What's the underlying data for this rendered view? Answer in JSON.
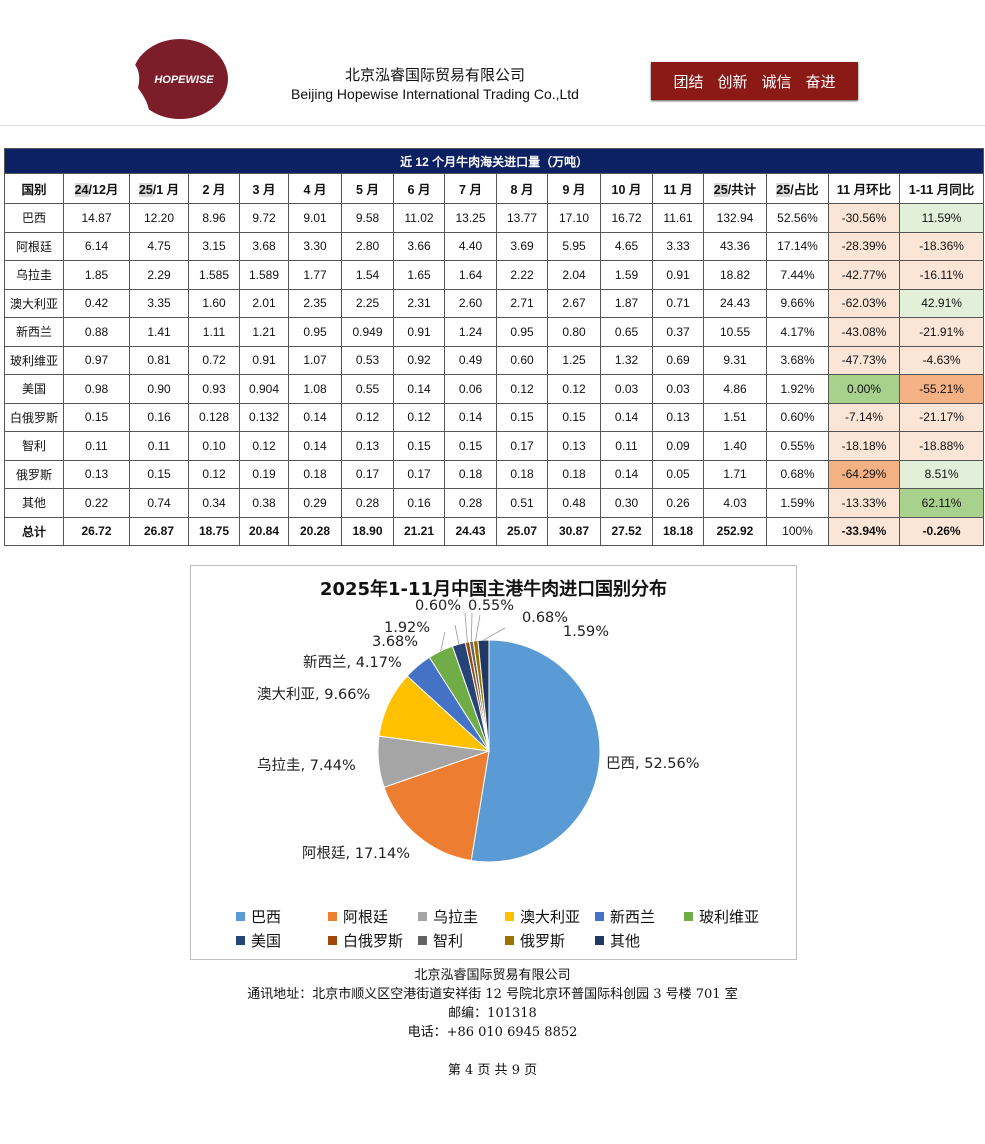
{
  "header": {
    "logo_text": "HOPEWISE",
    "company_cn": "北京泓睿国际贸易有限公司",
    "company_en": "Beijing Hopewise International Trading Co.,Ltd",
    "motto": [
      "团结",
      "创新",
      "诚信",
      "奋进"
    ],
    "brand_color": "#8B1A17"
  },
  "table": {
    "title": "近 12 个月牛肉海关进口量（万吨）",
    "columns": [
      "国别",
      "24/12月",
      "25/1 月",
      "2 月",
      "3 月",
      "4 月",
      "5 月",
      "6 月",
      "7 月",
      "8 月",
      "9 月",
      "10 月",
      "11 月",
      "25/共计",
      "25/占比",
      "11 月环比",
      "1-11 月同比"
    ],
    "rows": [
      {
        "cells": [
          "巴西",
          "14.87",
          "12.20",
          "8.96",
          "9.72",
          "9.01",
          "9.58",
          "11.02",
          "13.25",
          "13.77",
          "17.10",
          "16.72",
          "11.61",
          "132.94",
          "52.56%",
          "-30.56%",
          "11.59%"
        ],
        "mom_color": "#FBE5D6",
        "yoy_color": "#E2F0D9"
      },
      {
        "cells": [
          "阿根廷",
          "6.14",
          "4.75",
          "3.15",
          "3.68",
          "3.30",
          "2.80",
          "3.66",
          "4.40",
          "3.69",
          "5.95",
          "4.65",
          "3.33",
          "43.36",
          "17.14%",
          "-28.39%",
          "-18.36%"
        ],
        "mom_color": "#FBE5D6",
        "yoy_color": "#FBE5D6"
      },
      {
        "cells": [
          "乌拉圭",
          "1.85",
          "2.29",
          "1.585",
          "1.589",
          "1.77",
          "1.54",
          "1.65",
          "1.64",
          "2.22",
          "2.04",
          "1.59",
          "0.91",
          "18.82",
          "7.44%",
          "-42.77%",
          "-16.11%"
        ],
        "mom_color": "#FBE5D6",
        "yoy_color": "#FBE5D6"
      },
      {
        "cells": [
          "澳大利亚",
          "0.42",
          "3.35",
          "1.60",
          "2.01",
          "2.35",
          "2.25",
          "2.31",
          "2.60",
          "2.71",
          "2.67",
          "1.87",
          "0.71",
          "24.43",
          "9.66%",
          "-62.03%",
          "42.91%"
        ],
        "mom_color": "#FBE5D6",
        "yoy_color": "#E2F0D9"
      },
      {
        "cells": [
          "新西兰",
          "0.88",
          "1.41",
          "1.11",
          "1.21",
          "0.95",
          "0.949",
          "0.91",
          "1.24",
          "0.95",
          "0.80",
          "0.65",
          "0.37",
          "10.55",
          "4.17%",
          "-43.08%",
          "-21.91%"
        ],
        "mom_color": "#FBE5D6",
        "yoy_color": "#FBE5D6"
      },
      {
        "cells": [
          "玻利维亚",
          "0.97",
          "0.81",
          "0.72",
          "0.91",
          "1.07",
          "0.53",
          "0.92",
          "0.49",
          "0.60",
          "1.25",
          "1.32",
          "0.69",
          "9.31",
          "3.68%",
          "-47.73%",
          "-4.63%"
        ],
        "mom_color": "#FBE5D6",
        "yoy_color": "#FBE5D6"
      },
      {
        "cells": [
          "美国",
          "0.98",
          "0.90",
          "0.93",
          "0.904",
          "1.08",
          "0.55",
          "0.14",
          "0.06",
          "0.12",
          "0.12",
          "0.03",
          "0.03",
          "4.86",
          "1.92%",
          "0.00%",
          "-55.21%"
        ],
        "mom_color": "#A9D18E",
        "yoy_color": "#F4B183"
      },
      {
        "cells": [
          "白俄罗斯",
          "0.15",
          "0.16",
          "0.128",
          "0.132",
          "0.14",
          "0.12",
          "0.12",
          "0.14",
          "0.15",
          "0.15",
          "0.14",
          "0.13",
          "1.51",
          "0.60%",
          "-7.14%",
          "-21.17%"
        ],
        "mom_color": "#FBE5D6",
        "yoy_color": "#FBE5D6"
      },
      {
        "cells": [
          "智利",
          "0.11",
          "0.11",
          "0.10",
          "0.12",
          "0.14",
          "0.13",
          "0.15",
          "0.15",
          "0.17",
          "0.13",
          "0.11",
          "0.09",
          "1.40",
          "0.55%",
          "-18.18%",
          "-18.88%"
        ],
        "mom_color": "#FBE5D6",
        "yoy_color": "#FBE5D6"
      },
      {
        "cells": [
          "俄罗斯",
          "0.13",
          "0.15",
          "0.12",
          "0.19",
          "0.18",
          "0.17",
          "0.17",
          "0.18",
          "0.18",
          "0.18",
          "0.14",
          "0.05",
          "1.71",
          "0.68%",
          "-64.29%",
          "8.51%"
        ],
        "mom_color": "#F4B183",
        "yoy_color": "#E2F0D9"
      },
      {
        "cells": [
          "其他",
          "0.22",
          "0.74",
          "0.34",
          "0.38",
          "0.29",
          "0.28",
          "0.16",
          "0.28",
          "0.51",
          "0.48",
          "0.30",
          "0.26",
          "4.03",
          "1.59%",
          "-13.33%",
          "62.11%"
        ],
        "mom_color": "#FBE5D6",
        "yoy_color": "#A9D18E"
      }
    ],
    "total": {
      "cells": [
        "总计",
        "26.72",
        "26.87",
        "18.75",
        "20.84",
        "20.28",
        "18.90",
        "21.21",
        "24.43",
        "25.07",
        "30.87",
        "27.52",
        "18.18",
        "252.92",
        "100%",
        "-33.94%",
        "-0.26%"
      ],
      "mom_color": "#FBE5D6",
      "yoy_color": "#FBE5D6"
    }
  },
  "chart_data": {
    "type": "pie",
    "title": "2025年1-11月中国主港牛肉进口国别分布",
    "categories": [
      "巴西",
      "阿根廷",
      "乌拉圭",
      "澳大利亚",
      "新西兰",
      "玻利维亚",
      "美国",
      "白俄罗斯",
      "智利",
      "俄罗斯",
      "其他"
    ],
    "values": [
      52.56,
      17.14,
      7.44,
      9.66,
      4.17,
      3.68,
      1.92,
      0.6,
      0.55,
      0.68,
      1.59
    ],
    "labels": [
      "巴西, 52.56%",
      "阿根廷, 17.14%",
      "乌拉圭, 7.44%",
      "澳大利亚, 9.66%",
      "新西兰, 4.17%",
      "3.68%",
      "1.92%",
      "0.60%",
      "0.55%",
      "0.68%",
      "1.59%"
    ],
    "colors": [
      "#5B9BD5",
      "#ED7D31",
      "#A5A5A5",
      "#FFC000",
      "#4472C4",
      "#70AD47",
      "#264478",
      "#9E480E",
      "#636363",
      "#997300",
      "#1F3864"
    ],
    "legend_position": "bottom"
  },
  "footer": {
    "company": "北京泓睿国际贸易有限公司",
    "address": "通讯地址：北京市顺义区空港街道安祥街 12 号院北京环普国际科创园 3 号楼 701 室",
    "postcode": "邮编：101318",
    "phone": "电话：+86 010 6945 8852",
    "page": "第 4 页 共 9 页"
  }
}
